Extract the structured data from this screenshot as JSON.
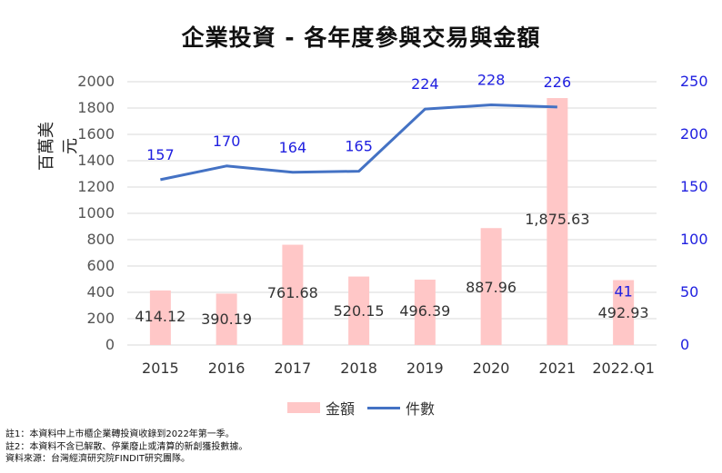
{
  "title": "企業投資 - 各年度參與交易與金額",
  "chart_data": {
    "type": "bar+line",
    "title": "企業投資 - 各年度參與交易與金額",
    "categories": [
      "2015",
      "2016",
      "2017",
      "2018",
      "2019",
      "2020",
      "2021",
      "2022.Q1"
    ],
    "ylabel": "百萬美元",
    "ylim": [
      0,
      2000
    ],
    "yticks": [
      0,
      200,
      400,
      600,
      800,
      1000,
      1200,
      1400,
      1600,
      1800,
      2000
    ],
    "y2lim": [
      0,
      250
    ],
    "y2ticks": [
      0,
      50,
      100,
      150,
      200,
      250
    ],
    "grid": true,
    "legend_position": "bottom",
    "series": [
      {
        "name": "金額",
        "kind": "bar",
        "axis": "left",
        "color": "#FFC7C7",
        "values": [
          414.12,
          390.19,
          761.68,
          520.15,
          496.39,
          887.96,
          1875.63,
          492.93
        ],
        "labels": [
          "414.12",
          "390.19",
          "761.68",
          "520.15",
          "496.39",
          "887.96",
          "1,875.63",
          "492.93"
        ]
      },
      {
        "name": "件數",
        "kind": "line",
        "axis": "right",
        "color": "#4472C4",
        "values": [
          157,
          170,
          164,
          165,
          224,
          228,
          226,
          41
        ],
        "labels": [
          "157",
          "170",
          "164",
          "165",
          "224",
          "228",
          "226",
          "41"
        ]
      }
    ]
  },
  "notes": [
    "註1：本資料中上市櫃企業轉投資收錄到2022年第一季。",
    "註2：本資料不含已解散、停業廢止或清算的新創獲投數據。",
    "資料來源：台灣經濟研究院FINDIT研究團隊。"
  ],
  "colors": {
    "bar": "#FFC7C7",
    "line": "#4472C4",
    "right_axis": "#2020E0",
    "grid": "#D9D9D9"
  }
}
